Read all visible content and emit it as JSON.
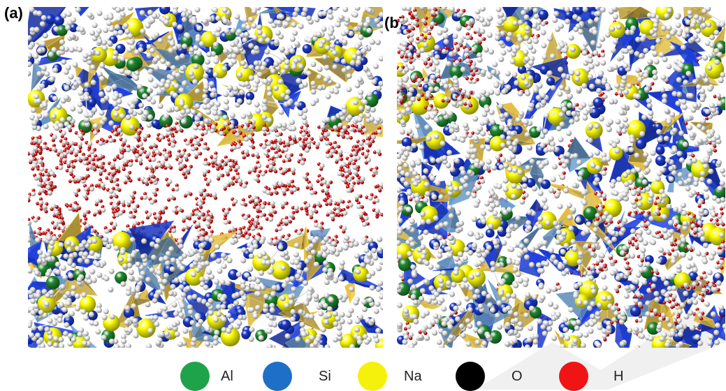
{
  "panels": [
    {
      "label": "(a)"
    },
    {
      "label": "(b)"
    }
  ],
  "legend": [
    {
      "label": "Al",
      "color": "#1fa34a"
    },
    {
      "label": "Si",
      "color": "#1e6fc7"
    },
    {
      "label": "Na",
      "color": "#f6f10a"
    },
    {
      "label": "O",
      "color": "#000000"
    },
    {
      "label": "H",
      "color": "#f01414"
    }
  ],
  "palette": {
    "si_tetra": "#1a37c4",
    "si_tetra_light": "#5f8bb8",
    "al_tetra": "#c8a93c",
    "al_atom": "#1f8a2e",
    "si_atom": "#1b39c9",
    "na_atom": "#ffff00",
    "o_atom": "#f0f0f0",
    "h_atom": "#e01010"
  }
}
